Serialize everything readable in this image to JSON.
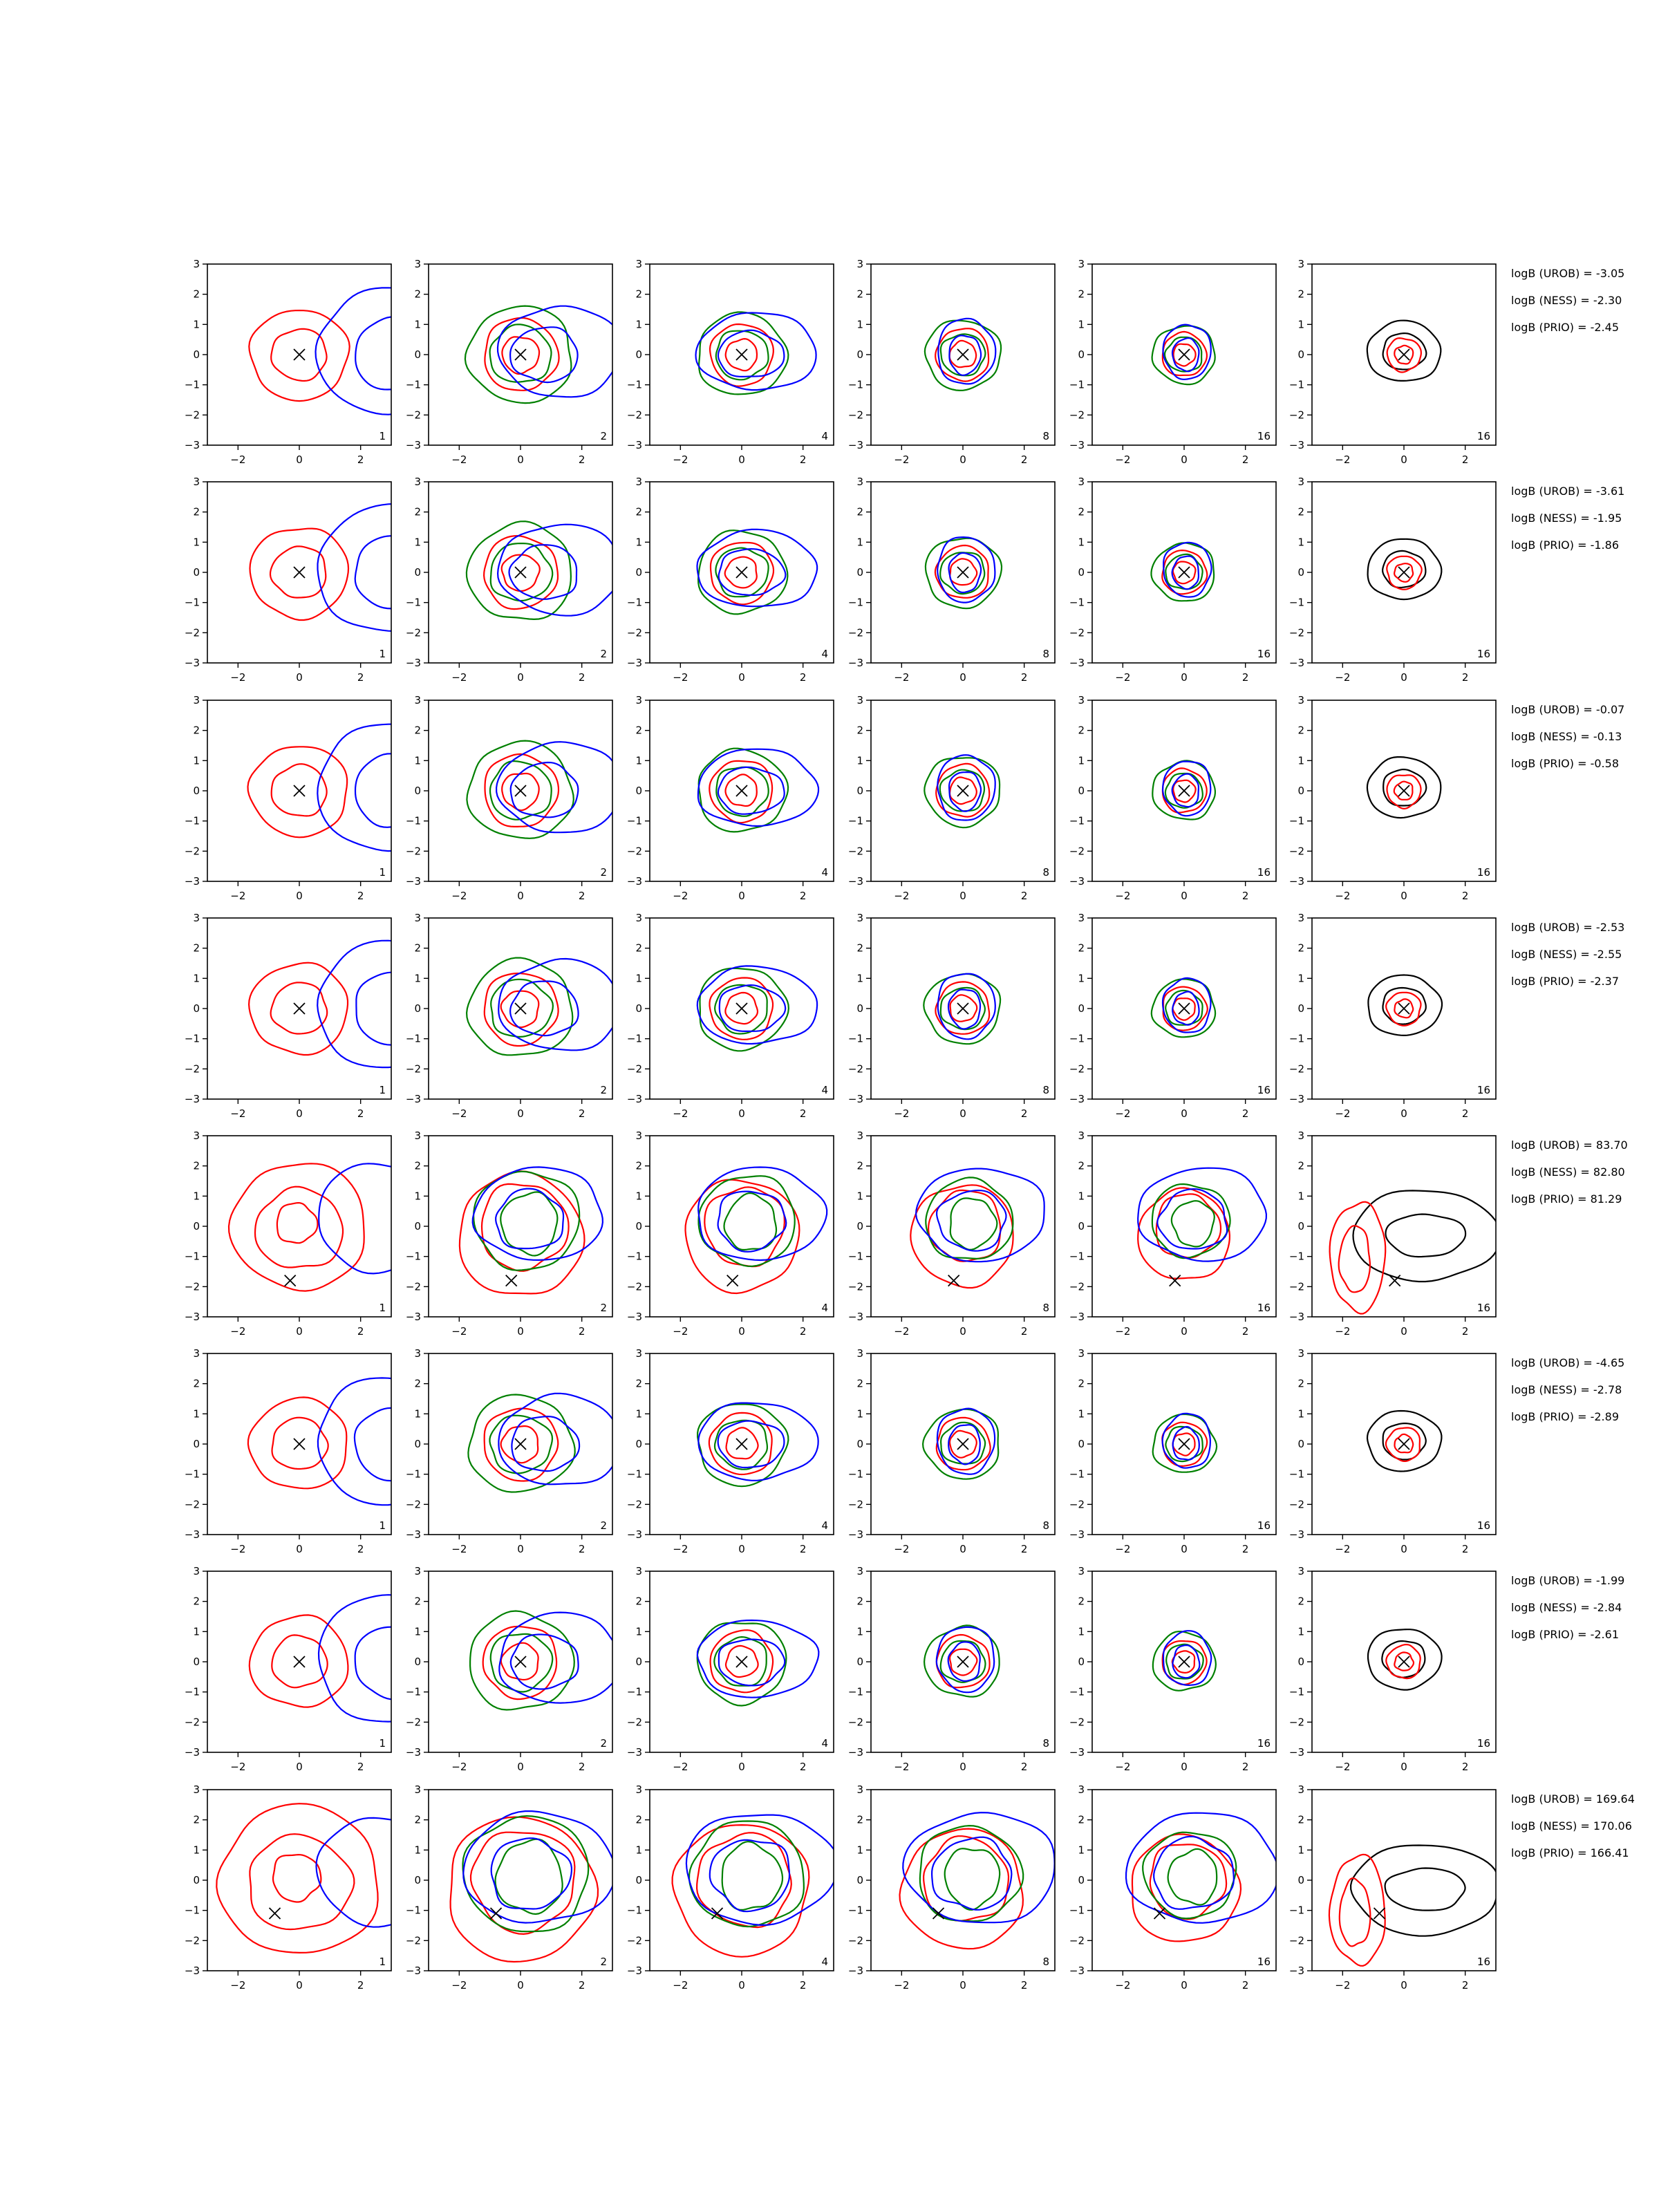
{
  "chart_data": {
    "type": "contour-grid",
    "columns": 6,
    "rows": 8,
    "xlim": [
      -3,
      3
    ],
    "ylim": [
      -3,
      3
    ],
    "x_ticks": [
      -2,
      0,
      2
    ],
    "y_ticks": [
      -3,
      -2,
      -1,
      0,
      1,
      2,
      3
    ],
    "series_colors": {
      "red": "#ff0000",
      "blue": "#0000ff",
      "green": "#008000",
      "black": "#000000"
    },
    "column_labels": [
      "1",
      "2",
      "4",
      "8",
      "16",
      "16"
    ],
    "rows_data": [
      {
        "marker": [
          0,
          0
        ],
        "annotations": [
          "logB (UROB) = -3.05",
          "logB (NESS) = -2.30",
          "logB (PRIO) = -2.45"
        ]
      },
      {
        "marker": [
          0,
          0
        ],
        "annotations": [
          "logB (UROB) = -3.61",
          "logB (NESS) = -1.95",
          "logB (PRIO) = -1.86"
        ]
      },
      {
        "marker": [
          0,
          0
        ],
        "annotations": [
          "logB (UROB) = -0.07",
          "logB (NESS) = -0.13",
          "logB (PRIO) = -0.58"
        ]
      },
      {
        "marker": [
          0,
          0
        ],
        "annotations": [
          "logB (UROB) = -2.53",
          "logB (NESS) = -2.55",
          "logB (PRIO) = -2.37"
        ]
      },
      {
        "marker": [
          -0.3,
          -1.8
        ],
        "annotations": [
          "logB (UROB) = 83.70",
          "logB (NESS) = 82.80",
          "logB (PRIO) = 81.29"
        ]
      },
      {
        "marker": [
          0,
          0
        ],
        "annotations": [
          "logB (UROB) = -4.65",
          "logB (NESS) = -2.78",
          "logB (PRIO) = -2.89"
        ]
      },
      {
        "marker": [
          0,
          0
        ],
        "annotations": [
          "logB (UROB) = -1.99",
          "logB (NESS) = -2.84",
          "logB (PRIO) = -2.61"
        ]
      },
      {
        "marker": [
          -0.8,
          -1.1
        ],
        "annotations": [
          "logB (UROB) = 169.64",
          "logB (NESS) = 170.06",
          "logB (PRIO) = 166.41"
        ]
      }
    ]
  }
}
